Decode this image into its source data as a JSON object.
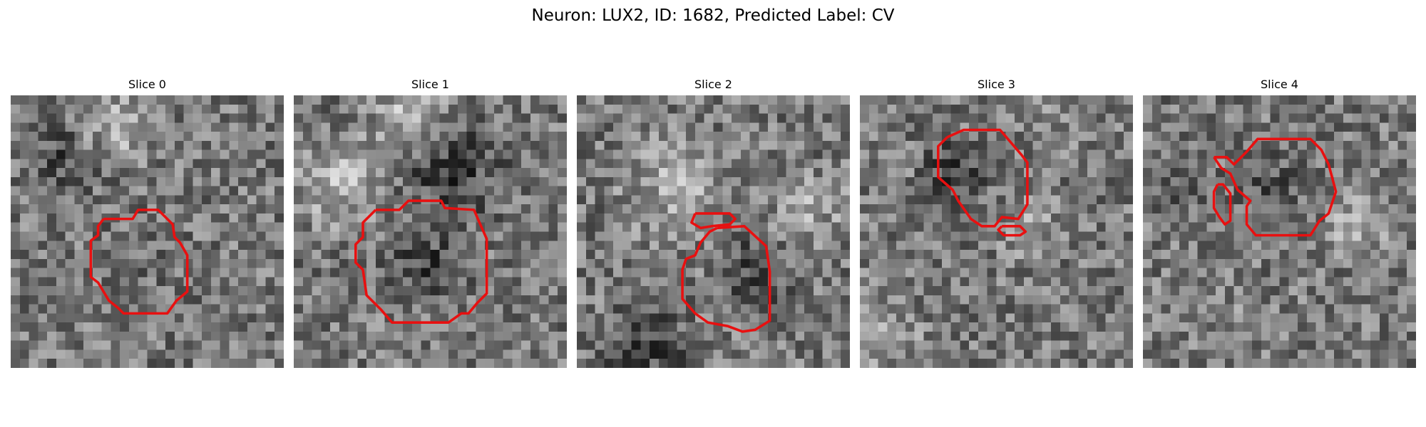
{
  "figure": {
    "title": "Neuron: LUX2, ID: 1682, Predicted Label: CV"
  },
  "panels": [
    {
      "title": "Slice 0"
    },
    {
      "title": "Slice 1"
    },
    {
      "title": "Slice 2"
    },
    {
      "title": "Slice 3"
    },
    {
      "title": "Slice 4"
    }
  ],
  "colors": {
    "contour": "#e81010",
    "background": "#ffffff"
  }
}
